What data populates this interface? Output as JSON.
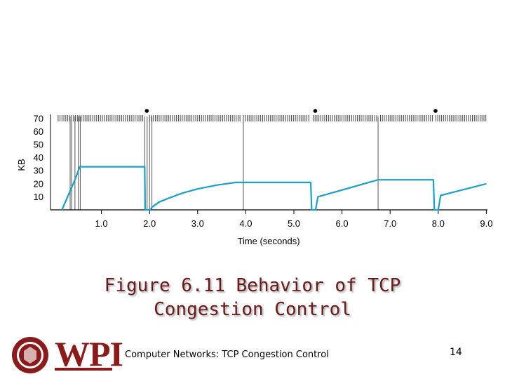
{
  "chart_data": {
    "type": "line",
    "xlabel": "Time (seconds)",
    "ylabel": "KB",
    "xlim": [
      0,
      9.0
    ],
    "ylim": [
      0,
      70
    ],
    "x_ticks": [
      "1.0",
      "2.0",
      "3.0",
      "4.0",
      "5.0",
      "6.0",
      "7.0",
      "8.0",
      "9.0"
    ],
    "y_ticks": [
      "10",
      "20",
      "30",
      "40",
      "50",
      "60",
      "70"
    ],
    "series": [
      {
        "color": "#1ba0c8",
        "x": [
          0.18,
          0.45,
          0.55,
          1.9,
          1.91,
          2.02,
          2.05,
          2.2,
          2.4,
          2.7,
          3.0,
          3.4,
          3.8,
          3.95,
          5.35,
          5.37,
          5.45,
          5.5,
          6.75,
          6.8,
          7.9,
          7.92,
          8.0,
          8.05,
          9.0
        ],
        "y": [
          0,
          23,
          33,
          33,
          0,
          0,
          2,
          6,
          9,
          13,
          16,
          19,
          21,
          21,
          21,
          0,
          0,
          10,
          23,
          23,
          23,
          0,
          0,
          11,
          20
        ]
      }
    ],
    "markers": {
      "dot_times": [
        1.9,
        5.4,
        7.9
      ],
      "vertical_lines": [
        0.35,
        0.38,
        0.45,
        0.52,
        0.56,
        1.9,
        1.95,
        2.0,
        2.05,
        3.95,
        6.75
      ]
    },
    "grid": false,
    "legend": "none"
  },
  "caption": {
    "line1": "Figure 6.11 Behavior of TCP",
    "line2": "Congestion Control"
  },
  "footer": {
    "logo_text": "WPI",
    "title": "Computer Networks: TCP Congestion Control",
    "page_number": "14"
  },
  "colors": {
    "series": "#1ba0c8",
    "accent": "#8b1a1a"
  }
}
